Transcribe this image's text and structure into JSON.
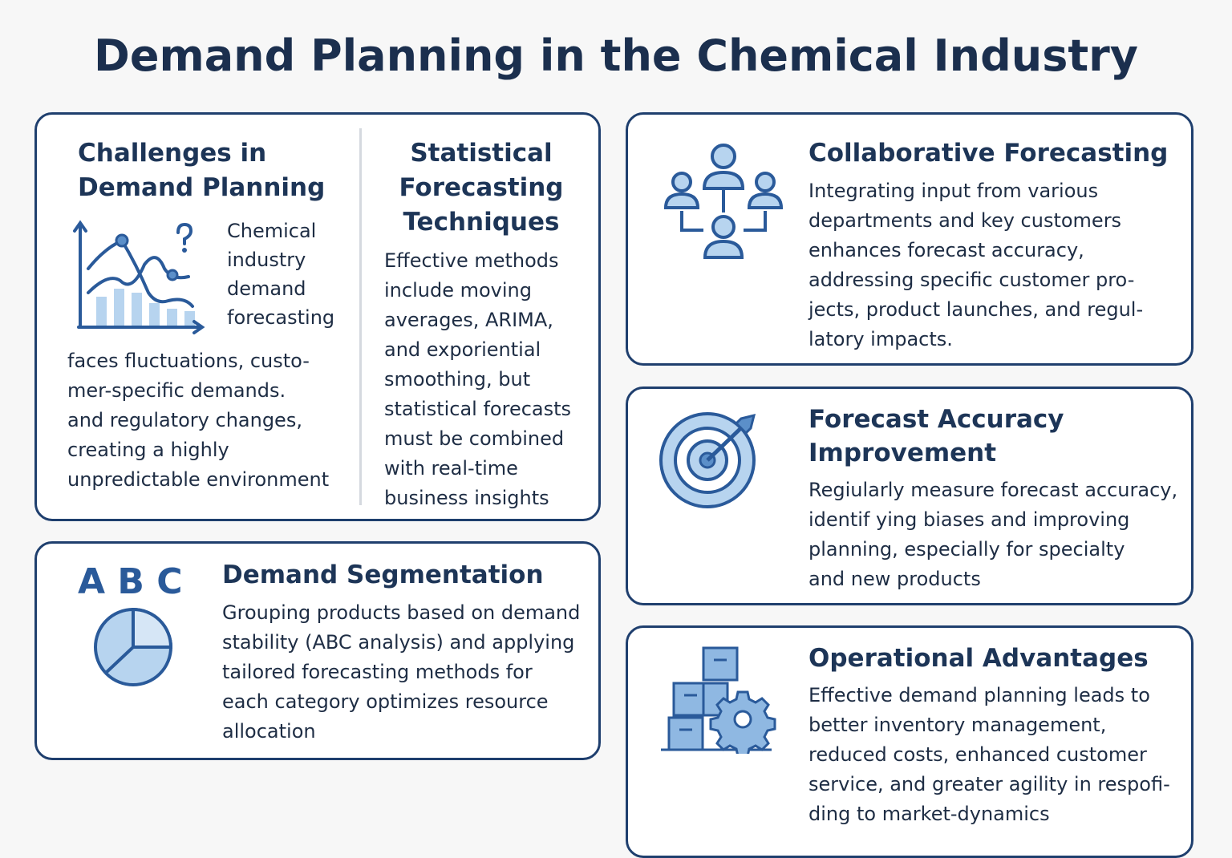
{
  "title": "Demand Planning in the Chemical Industry",
  "challenges": {
    "title": [
      "Challenges in",
      "Demand Planning"
    ],
    "side_lines": [
      "Chemical",
      "industry",
      "demand",
      "forecasting"
    ],
    "lines": [
      "faces fluctuations, custo-",
      "mer-specific demands.",
      "and regulatory changes,",
      "creating a highly",
      "unpredictable environment"
    ]
  },
  "statistical": {
    "title": [
      "Statistical",
      "Forecasting",
      "Techniques"
    ],
    "lines": [
      "Effective methods",
      "include moving",
      "averages, ARIMA,",
      "and exporiential",
      "smoothing, but",
      "statistical forecasts",
      "must be combined",
      "with real-time",
      "business insights"
    ]
  },
  "collaborative": {
    "title": [
      "Collaborative Forecasting"
    ],
    "lines": [
      "Integrating input from various",
      "departments and key customers",
      "enhances forecast accuracy,",
      "addressing specific customer pro-",
      "jects, product launches, and regul-",
      "latory impacts."
    ]
  },
  "accuracy": {
    "title": [
      "Forecast Accuracy",
      "Improvement"
    ],
    "lines": [
      "Regiularly measure forecast accuracy,",
      "identif ying biases and improving",
      "planning, especially for specialty",
      "and new products"
    ]
  },
  "segmentation": {
    "icon_text": "A B C",
    "title": [
      "Demand Segmentation"
    ],
    "lines": [
      "Grouping products based on demand",
      "stability (ABC analysis) and applying",
      "tailored forecasting methods for",
      "each category optimizes resource",
      "allocation"
    ]
  },
  "operational": {
    "title": [
      "Operational Advantages"
    ],
    "lines": [
      "Effective demand planning leads to",
      "better inventory management,",
      "reduced costs, enhanced customer",
      "service, and greater agility in respofi-",
      "ding to market-dynamics"
    ]
  }
}
